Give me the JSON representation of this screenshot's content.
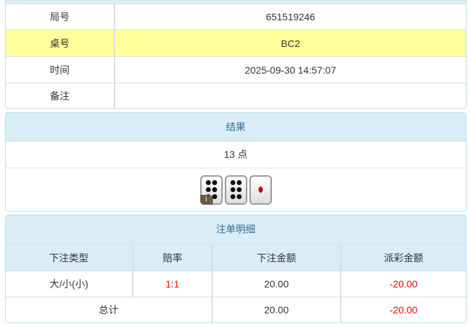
{
  "info": {
    "rows": [
      {
        "label": "局号",
        "value": "651519246"
      },
      {
        "label": "桌号",
        "value": "BC2"
      },
      {
        "label": "时间",
        "value": "2025-09-30 14:57:07"
      },
      {
        "label": "备注",
        "value": ""
      }
    ]
  },
  "result": {
    "title": "结果",
    "points": "13 点",
    "dice": [
      6,
      6,
      1
    ],
    "info_badge": "i"
  },
  "bets": {
    "title": "注单明细",
    "headers": [
      "下注类型",
      "赔率",
      "下注金额",
      "派彩金额"
    ],
    "rows": [
      {
        "type": "大/小(小)",
        "odds": "1:1",
        "amount": "20.00",
        "payout": "-20.00"
      }
    ],
    "total": {
      "label": "总计",
      "amount": "20.00",
      "payout": "-20.00"
    }
  },
  "colors": {
    "header_bg": "#d9edf7",
    "highlight": "#ffff99",
    "negative": "#e00000"
  }
}
